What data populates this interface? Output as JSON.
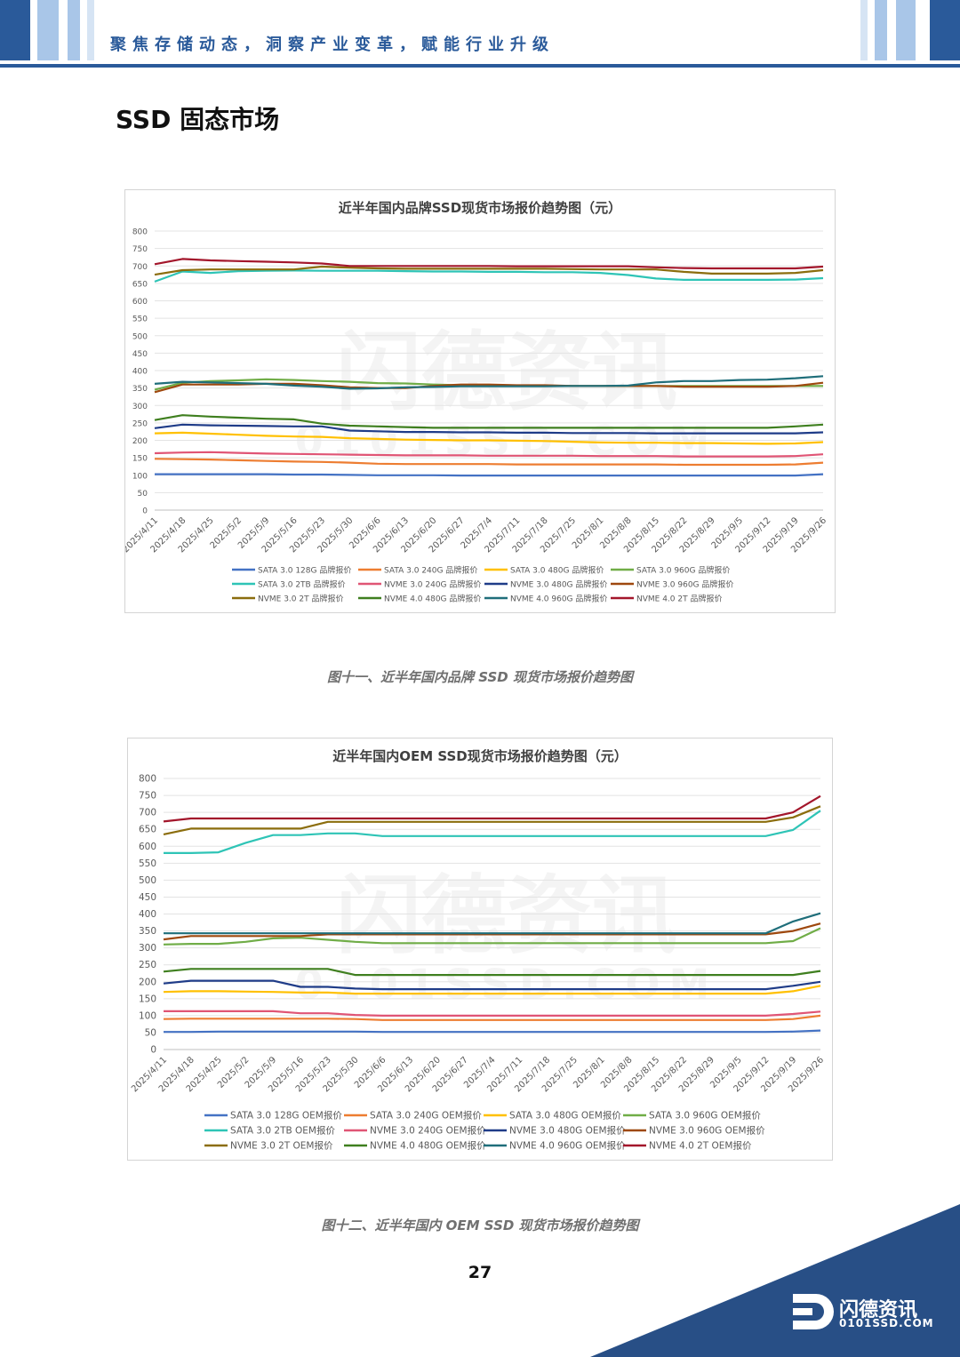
{
  "header": {
    "slogan": "聚焦存储动态，洞察产业变革，赋能行业升级",
    "accent_color": "#2a5a9a",
    "light_color": "#a9c6e8"
  },
  "section_title": "SSD 固态市场",
  "chart_data": [
    {
      "type": "line",
      "title": "近半年国内品牌SSD现货市场报价趋势图（元）",
      "xlabel": "",
      "ylabel": "",
      "ylim": [
        0,
        800
      ],
      "yticks": [
        0,
        50,
        100,
        150,
        200,
        250,
        300,
        350,
        400,
        450,
        500,
        550,
        600,
        650,
        700,
        750,
        800
      ],
      "grid": true,
      "legend_position": "bottom",
      "x": [
        "2025/4/11",
        "2025/4/18",
        "2025/4/25",
        "2025/5/2",
        "2025/5/9",
        "2025/5/16",
        "2025/5/23",
        "2025/5/30",
        "2025/6/6",
        "2025/6/13",
        "2025/6/20",
        "2025/6/27",
        "2025/7/4",
        "2025/7/11",
        "2025/7/18",
        "2025/7/25",
        "2025/8/1",
        "2025/8/8",
        "2025/8/15",
        "2025/8/22",
        "2025/8/29",
        "2025/9/5",
        "2025/9/12",
        "2025/9/19",
        "2025/9/26"
      ],
      "series": [
        {
          "name": "SATA 3.0 128G 品牌报价",
          "color": "#4472c4",
          "values": [
            103,
            103,
            103,
            103,
            103,
            102,
            102,
            101,
            100,
            100,
            100,
            99,
            99,
            99,
            99,
            99,
            99,
            99,
            99,
            99,
            99,
            99,
            99,
            99,
            103
          ]
        },
        {
          "name": "SATA 3.0 240G 品牌报价",
          "color": "#ed7d31",
          "values": [
            147,
            146,
            145,
            143,
            141,
            139,
            138,
            136,
            133,
            132,
            132,
            132,
            132,
            131,
            131,
            131,
            131,
            131,
            131,
            130,
            130,
            130,
            130,
            131,
            136
          ]
        },
        {
          "name": "SATA 3.0 480G 品牌报价",
          "color": "#ffc000",
          "values": [
            220,
            222,
            219,
            216,
            213,
            211,
            210,
            206,
            204,
            202,
            201,
            200,
            200,
            199,
            198,
            196,
            194,
            193,
            193,
            192,
            192,
            191,
            190,
            191,
            195
          ]
        },
        {
          "name": "SATA 3.0 960G 品牌报价",
          "color": "#70ad47",
          "values": [
            345,
            365,
            370,
            372,
            375,
            373,
            370,
            368,
            364,
            363,
            360,
            358,
            358,
            357,
            357,
            356,
            356,
            356,
            356,
            356,
            356,
            356,
            356,
            356,
            356
          ]
        },
        {
          "name": "SATA 3.0 2TB 品牌报价",
          "color": "#2ec4b6",
          "values": [
            655,
            684,
            680,
            685,
            686,
            687,
            686,
            686,
            686,
            685,
            684,
            684,
            683,
            683,
            682,
            682,
            680,
            674,
            664,
            660,
            660,
            660,
            660,
            661,
            665
          ]
        },
        {
          "name": "NVME 3.0 240G 品牌报价",
          "color": "#e05575",
          "values": [
            163,
            165,
            166,
            164,
            162,
            161,
            160,
            159,
            158,
            157,
            157,
            157,
            156,
            156,
            156,
            156,
            155,
            155,
            155,
            154,
            154,
            154,
            154,
            155,
            160
          ]
        },
        {
          "name": "NVME 3.0 480G 品牌报价",
          "color": "#1f3c88",
          "values": [
            235,
            245,
            243,
            242,
            241,
            240,
            240,
            228,
            226,
            224,
            224,
            223,
            223,
            222,
            222,
            221,
            221,
            221,
            220,
            220,
            220,
            220,
            220,
            220,
            223
          ]
        },
        {
          "name": "NVME 3.0 960G 品牌报价",
          "color": "#9e480e",
          "values": [
            338,
            360,
            360,
            360,
            362,
            362,
            358,
            352,
            350,
            350,
            356,
            360,
            360,
            358,
            358,
            356,
            356,
            356,
            356,
            354,
            354,
            354,
            354,
            356,
            365
          ]
        },
        {
          "name": "NVME 3.0 2T 品牌报价",
          "color": "#8b6d0d",
          "values": [
            675,
            688,
            690,
            690,
            690,
            690,
            698,
            695,
            693,
            692,
            692,
            692,
            692,
            692,
            692,
            691,
            690,
            690,
            690,
            683,
            678,
            678,
            678,
            680,
            688
          ]
        },
        {
          "name": "NVME 4.0 480G 品牌报价",
          "color": "#3f7f1f",
          "values": [
            258,
            272,
            268,
            265,
            262,
            260,
            248,
            242,
            240,
            238,
            236,
            236,
            236,
            236,
            236,
            236,
            236,
            236,
            236,
            236,
            236,
            236,
            236,
            240,
            245
          ]
        },
        {
          "name": "NVME 4.0 960G 品牌报价",
          "color": "#1f6e7a",
          "values": [
            362,
            368,
            366,
            364,
            362,
            357,
            354,
            348,
            349,
            352,
            353,
            355,
            355,
            355,
            355,
            356,
            356,
            357,
            366,
            370,
            370,
            373,
            374,
            378,
            384
          ]
        },
        {
          "name": "NVME 4.0 2T 品牌报价",
          "color": "#a3162b",
          "values": [
            705,
            720,
            716,
            714,
            712,
            710,
            707,
            700,
            700,
            700,
            700,
            700,
            700,
            699,
            699,
            699,
            699,
            699,
            696,
            694,
            693,
            693,
            693,
            693,
            698
          ]
        }
      ]
    },
    {
      "type": "line",
      "title": "近半年国内OEM SSD现货市场报价趋势图（元）",
      "xlabel": "",
      "ylabel": "",
      "ylim": [
        0,
        800
      ],
      "yticks": [
        0,
        50,
        100,
        150,
        200,
        250,
        300,
        350,
        400,
        450,
        500,
        550,
        600,
        650,
        700,
        750,
        800
      ],
      "grid": true,
      "legend_position": "bottom",
      "x": [
        "2025/4/11",
        "2025/4/18",
        "2025/4/25",
        "2025/5/2",
        "2025/5/9",
        "2025/5/16",
        "2025/5/23",
        "2025/5/30",
        "2025/6/6",
        "2025/6/13",
        "2025/6/20",
        "2025/6/27",
        "2025/7/4",
        "2025/7/11",
        "2025/7/18",
        "2025/7/25",
        "2025/8/1",
        "2025/8/8",
        "2025/8/15",
        "2025/8/22",
        "2025/8/29",
        "2025/9/5",
        "2025/9/12",
        "2025/9/19",
        "2025/9/26"
      ],
      "series": [
        {
          "name": "SATA 3.0 128G OEM报价",
          "color": "#4472c4",
          "values": [
            52,
            52,
            53,
            53,
            53,
            53,
            53,
            53,
            52,
            52,
            52,
            52,
            52,
            52,
            52,
            52,
            52,
            52,
            52,
            52,
            52,
            52,
            52,
            53,
            56
          ]
        },
        {
          "name": "SATA 3.0 240G OEM报价",
          "color": "#ed7d31",
          "values": [
            90,
            91,
            91,
            91,
            91,
            91,
            91,
            90,
            87,
            87,
            87,
            87,
            87,
            87,
            87,
            87,
            87,
            87,
            87,
            87,
            87,
            87,
            87,
            90,
            100
          ]
        },
        {
          "name": "SATA 3.0 480G OEM报价",
          "color": "#ffc000",
          "values": [
            170,
            172,
            172,
            171,
            170,
            168,
            168,
            165,
            165,
            165,
            165,
            165,
            165,
            165,
            165,
            165,
            165,
            165,
            165,
            165,
            165,
            165,
            165,
            172,
            188
          ]
        },
        {
          "name": "SATA 3.0 960G OEM报价",
          "color": "#70ad47",
          "values": [
            310,
            312,
            312,
            318,
            328,
            330,
            324,
            318,
            314,
            314,
            314,
            314,
            314,
            314,
            314,
            314,
            314,
            314,
            314,
            314,
            314,
            314,
            314,
            320,
            358
          ]
        },
        {
          "name": "SATA 3.0 2TB OEM报价",
          "color": "#2ec4b6",
          "values": [
            580,
            580,
            582,
            610,
            633,
            633,
            638,
            638,
            630,
            630,
            630,
            630,
            630,
            630,
            630,
            630,
            630,
            630,
            630,
            630,
            630,
            630,
            630,
            648,
            705
          ]
        },
        {
          "name": "NVME 3.0 240G OEM报价",
          "color": "#e05575",
          "values": [
            113,
            113,
            113,
            113,
            113,
            107,
            107,
            102,
            100,
            100,
            100,
            100,
            100,
            100,
            100,
            100,
            100,
            100,
            100,
            100,
            100,
            100,
            100,
            105,
            112
          ]
        },
        {
          "name": "NVME 3.0 480G OEM报价",
          "color": "#1f3c88",
          "values": [
            195,
            203,
            203,
            203,
            203,
            185,
            185,
            180,
            178,
            178,
            178,
            178,
            178,
            178,
            178,
            178,
            178,
            178,
            178,
            178,
            178,
            178,
            178,
            188,
            200
          ]
        },
        {
          "name": "NVME 3.0 960G OEM报价",
          "color": "#9e480e",
          "values": [
            325,
            335,
            335,
            335,
            335,
            335,
            340,
            340,
            340,
            340,
            340,
            340,
            340,
            340,
            340,
            340,
            340,
            340,
            340,
            340,
            340,
            340,
            340,
            350,
            372
          ]
        },
        {
          "name": "NVME 3.0 2T OEM报价",
          "color": "#8b6d0d",
          "values": [
            635,
            652,
            652,
            652,
            652,
            652,
            672,
            672,
            672,
            672,
            672,
            672,
            672,
            672,
            672,
            672,
            672,
            672,
            672,
            672,
            672,
            672,
            672,
            685,
            718
          ]
        },
        {
          "name": "NVME 4.0 480G OEM报价",
          "color": "#3f7f1f",
          "values": [
            230,
            238,
            238,
            238,
            238,
            238,
            238,
            220,
            220,
            220,
            220,
            220,
            220,
            220,
            220,
            220,
            220,
            220,
            220,
            220,
            220,
            220,
            220,
            220,
            232
          ]
        },
        {
          "name": "NVME 4.0 960G OEM报价",
          "color": "#1f6e7a",
          "values": [
            343,
            343,
            343,
            343,
            343,
            343,
            343,
            343,
            343,
            343,
            343,
            343,
            343,
            343,
            343,
            343,
            343,
            343,
            343,
            343,
            343,
            343,
            343,
            378,
            402
          ]
        },
        {
          "name": "NVME 4.0 2T OEM报价",
          "color": "#a3162b",
          "values": [
            673,
            682,
            682,
            682,
            682,
            682,
            682,
            682,
            682,
            682,
            682,
            682,
            682,
            682,
            682,
            682,
            682,
            682,
            682,
            682,
            682,
            682,
            682,
            700,
            748
          ]
        }
      ]
    }
  ],
  "captions": {
    "brand": "图十一、近半年国内品牌 SSD 现货市场报价趋势图",
    "oem": "图十二、近半年国内 OEM SSD 现货市场报价趋势图"
  },
  "page_number": "27",
  "footer": {
    "logo_name": "闪德资讯",
    "logo_url": "0101SSD.COM",
    "watermark": "0101SSD.COM",
    "logo_icon": "sd-logo-icon",
    "navy_color": "#284f86"
  }
}
